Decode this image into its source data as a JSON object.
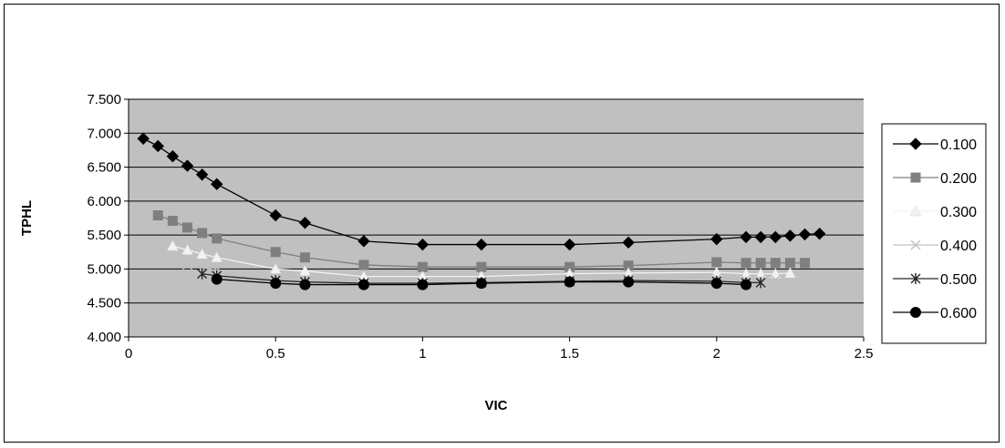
{
  "chart_data": {
    "type": "line",
    "title": "",
    "xlabel": "VIC",
    "ylabel": "TPHL",
    "xlim": [
      0,
      2.5
    ],
    "ylim": [
      4.0,
      7.5
    ],
    "x_ticks": [
      0,
      0.5,
      1,
      1.5,
      2,
      2.5
    ],
    "x_tick_labels": [
      "0",
      "0.5",
      "1",
      "1.5",
      "2",
      "2.5"
    ],
    "y_ticks": [
      4.0,
      4.5,
      5.0,
      5.5,
      6.0,
      6.5,
      7.0,
      7.5
    ],
    "y_tick_labels": [
      "4.000",
      "4.500",
      "5.000",
      "5.500",
      "6.000",
      "6.500",
      "7.000",
      "7.500"
    ],
    "grid": "horizontal",
    "plot_background": "#c0c0c0",
    "legend_position": "right",
    "series": [
      {
        "name": "0.100",
        "color": "#000000",
        "marker": "diamond",
        "x": [
          0.05,
          0.1,
          0.15,
          0.2,
          0.25,
          0.3,
          0.5,
          0.6,
          0.8,
          1.0,
          1.2,
          1.5,
          1.7,
          2.0,
          2.1,
          2.15,
          2.2,
          2.25,
          2.3,
          2.35
        ],
        "y": [
          6.92,
          6.81,
          6.66,
          6.52,
          6.39,
          6.25,
          5.79,
          5.68,
          5.41,
          5.36,
          5.36,
          5.36,
          5.39,
          5.44,
          5.47,
          5.47,
          5.47,
          5.49,
          5.51,
          5.52
        ]
      },
      {
        "name": "0.200",
        "color": "#7f7f7f",
        "marker": "square",
        "x": [
          0.1,
          0.15,
          0.2,
          0.25,
          0.3,
          0.5,
          0.6,
          0.8,
          1.0,
          1.2,
          1.5,
          1.7,
          2.0,
          2.1,
          2.15,
          2.2,
          2.25,
          2.3
        ],
        "y": [
          5.79,
          5.71,
          5.61,
          5.53,
          5.45,
          5.25,
          5.17,
          5.06,
          5.03,
          5.03,
          5.03,
          5.05,
          5.1,
          5.09,
          5.09,
          5.09,
          5.09,
          5.09
        ]
      },
      {
        "name": "0.300",
        "color": "#f2f2f2",
        "marker": "triangle",
        "x": [
          0.15,
          0.2,
          0.25,
          0.3,
          0.5,
          0.6,
          0.8,
          1.0,
          1.2,
          1.5,
          1.7,
          2.0,
          2.1,
          2.15,
          2.2,
          2.25
        ],
        "y": [
          5.34,
          5.28,
          5.22,
          5.17,
          5.0,
          4.97,
          4.89,
          4.89,
          4.89,
          4.93,
          4.94,
          4.95,
          4.93,
          4.93,
          4.93,
          4.94
        ]
      },
      {
        "name": "0.400",
        "color": "#bfbfbf",
        "marker": "x",
        "x": [
          0.2,
          0.25,
          0.3,
          0.5,
          0.6,
          0.8,
          1.0,
          1.2,
          1.5,
          1.7,
          2.0,
          2.1,
          2.15,
          2.2
        ],
        "y": [
          5.06,
          5.02,
          4.98,
          4.87,
          4.84,
          4.8,
          4.8,
          4.82,
          4.85,
          4.86,
          4.86,
          4.84,
          4.84,
          4.84
        ]
      },
      {
        "name": "0.500",
        "color": "#262626",
        "marker": "asterisk",
        "x": [
          0.25,
          0.3,
          0.5,
          0.6,
          0.8,
          1.0,
          1.2,
          1.5,
          1.7,
          2.0,
          2.1,
          2.15
        ],
        "y": [
          4.93,
          4.9,
          4.83,
          4.81,
          4.79,
          4.79,
          4.8,
          4.82,
          4.83,
          4.82,
          4.8,
          4.8
        ]
      },
      {
        "name": "0.600",
        "color": "#000000",
        "marker": "circle",
        "x": [
          0.3,
          0.5,
          0.6,
          0.8,
          1.0,
          1.2,
          1.5,
          1.7,
          2.0,
          2.1
        ],
        "y": [
          4.85,
          4.79,
          4.77,
          4.77,
          4.77,
          4.79,
          4.81,
          4.81,
          4.79,
          4.77
        ]
      }
    ]
  }
}
